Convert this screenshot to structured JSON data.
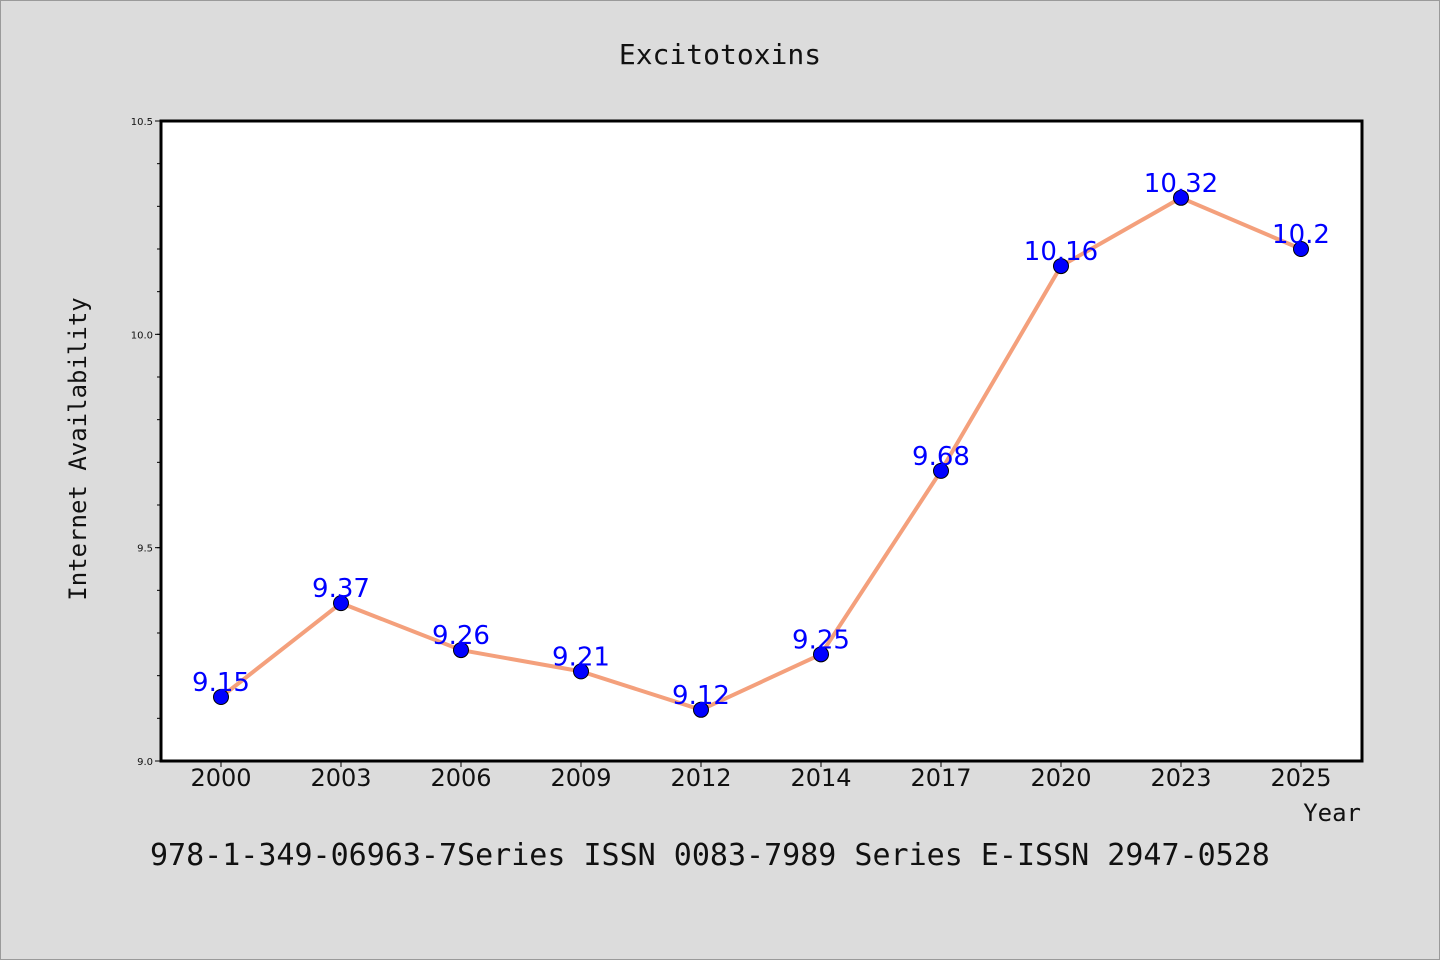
{
  "chart_data": {
    "type": "line",
    "title": "Excitotoxins",
    "xlabel": "Year",
    "ylabel": "Internet Availability",
    "categories": [
      "2000",
      "2003",
      "2006",
      "2009",
      "2012",
      "2014",
      "2017",
      "2020",
      "2023",
      "2025"
    ],
    "series": [
      {
        "values": [
          9.15,
          9.37,
          9.26,
          9.21,
          9.12,
          9.25,
          9.68,
          10.16,
          10.32,
          10.2
        ]
      }
    ],
    "data_labels": [
      "9.15",
      "9.37",
      "9.26",
      "9.21",
      "9.12",
      "9.25",
      "9.68",
      "10.16",
      "10.32",
      "10.2"
    ],
    "ylim": [
      9.0,
      10.5
    ],
    "y_ticks": [
      "9.0",
      "9.5",
      "10.0",
      "10.5"
    ],
    "grid": false,
    "line_color": "#f4a07c",
    "marker_color": "#0000ff",
    "label_color": "#0000ff"
  },
  "footer_text": "978-1-349-06963-7Series ISSN 0083-7989 Series E-ISSN 2947-0528"
}
